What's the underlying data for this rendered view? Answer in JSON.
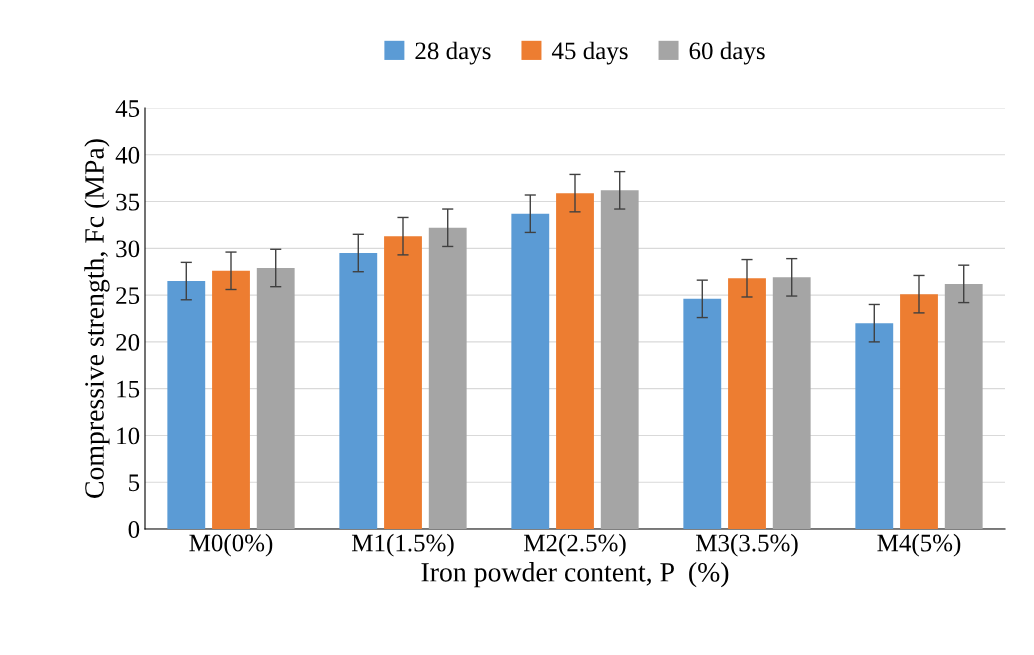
{
  "chart_data": {
    "type": "bar",
    "xlabel": "Iron powder content, P  (%)",
    "ylabel": "Compressive strength, Fc (MPa)",
    "categories": [
      "M0(0%)",
      "M1(1.5%)",
      "M2(2.5%)",
      "M3(3.5%)",
      "M4(5%)"
    ],
    "series": [
      {
        "name": "28 days",
        "color": "#5b9bd5",
        "values": [
          26.5,
          29.5,
          33.7,
          24.6,
          22.0
        ],
        "errors": [
          2,
          2,
          2,
          2,
          2
        ]
      },
      {
        "name": "45 days",
        "color": "#ed7d31",
        "values": [
          27.6,
          31.3,
          35.9,
          26.8,
          25.1
        ],
        "errors": [
          2,
          2,
          2,
          2,
          2
        ]
      },
      {
        "name": "60 days",
        "color": "#a5a5a5",
        "values": [
          27.9,
          32.2,
          36.2,
          26.9,
          26.2
        ],
        "errors": [
          2,
          2,
          2,
          2,
          2
        ]
      }
    ],
    "ylim": [
      0,
      45
    ],
    "yticks": [
      0,
      5,
      10,
      15,
      20,
      25,
      30,
      35,
      40,
      45
    ],
    "grid": "y",
    "legend": "top"
  }
}
